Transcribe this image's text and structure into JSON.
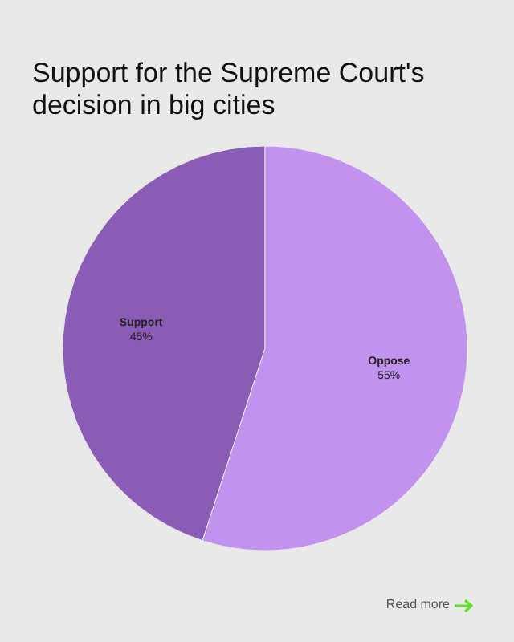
{
  "chart_data": {
    "type": "pie",
    "title": "Support for the Supreme Court's decision in big cities",
    "categories": [
      "Support",
      "Oppose"
    ],
    "values": [
      45,
      55
    ],
    "colors": [
      "#8a5cb5",
      "#c292ef"
    ],
    "value_labels": [
      "45%",
      "55%"
    ],
    "annotations": [
      "Read more"
    ]
  }
}
